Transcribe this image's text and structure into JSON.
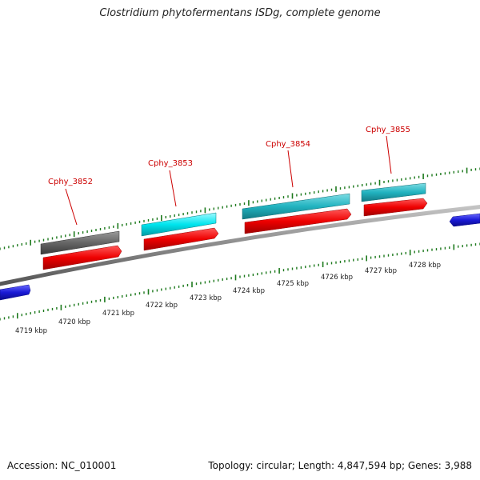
{
  "title": "Clostridium phytofermentans ISDg, complete genome",
  "footer": {
    "accession": "Accession: NC_010001",
    "summary": "Topology: circular; Length: 4,847,594 bp; Genes: 3,988"
  },
  "colors": {
    "backbone": "#8a8a8a",
    "forward_cds": "#ee0000",
    "gray_feature": "#666666",
    "cyan_feature": "#00e5ee",
    "teal_feature": "#22b3c0",
    "blue_feature": "#1a1ad6",
    "tick": "#1e7a1e",
    "label": "#cc0000"
  },
  "axis_labels": [
    "4719 kbp",
    "4720 kbp",
    "4721 kbp",
    "4722 kbp",
    "4723 kbp",
    "4724 kbp",
    "4725 kbp",
    "4726 kbp",
    "4727 kbp",
    "4728 kbp"
  ],
  "genes": [
    {
      "name": "Cphy_3852"
    },
    {
      "name": "Cphy_3853"
    },
    {
      "name": "Cphy_3854"
    },
    {
      "name": "Cphy_3855"
    }
  ]
}
